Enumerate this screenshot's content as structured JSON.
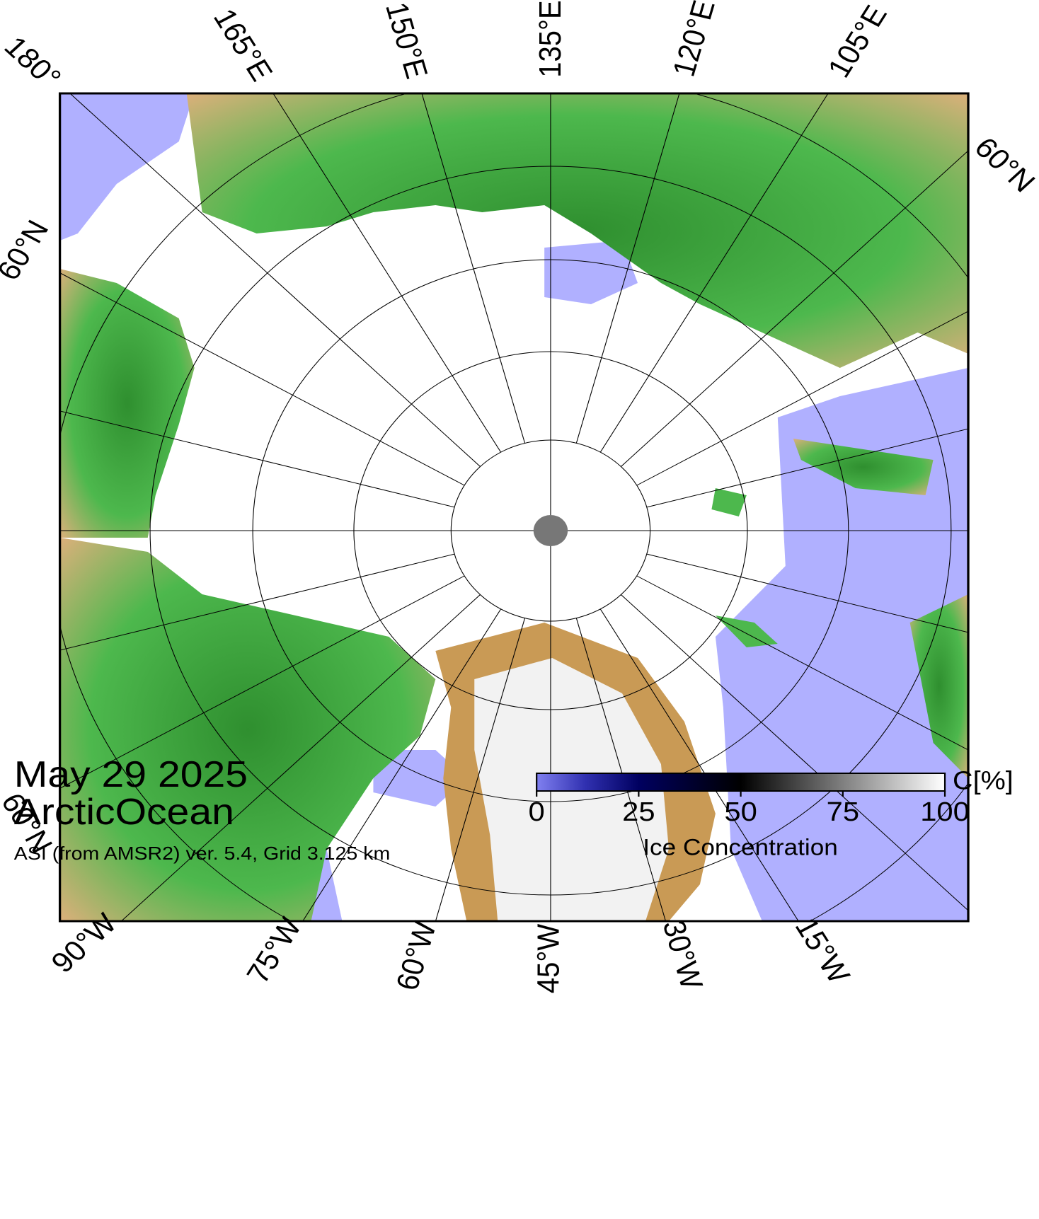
{
  "map": {
    "date": "May 29 2025",
    "region": "ArcticOcean",
    "source": "ASI (from AMSR2) ver. 5.4,  Grid 3.125 km",
    "lon_labels_top": [
      "180°",
      "165°E",
      "150°E",
      "135°E",
      "120°E",
      "105°E"
    ],
    "lat_labels": [
      "60°N",
      "60°N",
      "60°N"
    ],
    "lon_labels_bottom": [
      "90°W",
      "75°W",
      "60°W",
      "45°W",
      "30°W",
      "15°W"
    ]
  },
  "colorbar": {
    "label": "Ice Concentration",
    "unit": "C[%]",
    "lim": [
      0,
      100
    ],
    "ticks": [
      0,
      25,
      50,
      75,
      100
    ]
  }
}
